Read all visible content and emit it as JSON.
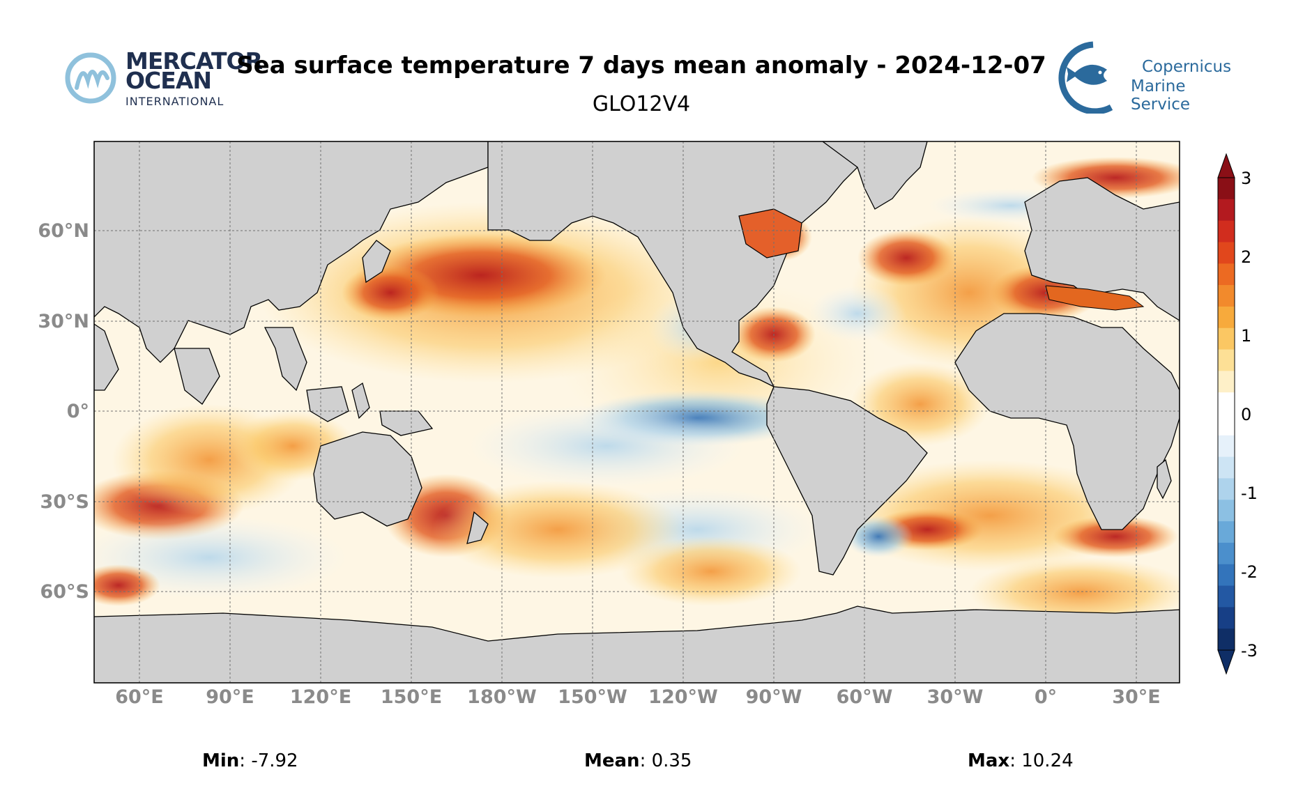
{
  "header": {
    "title": "Sea surface temperature 7 days mean anomaly - 2024-12-07",
    "subtitle": "GLO12V4"
  },
  "logos": {
    "left": {
      "line1": "MERCATOR",
      "line2": "OCEAN",
      "line3": "INTERNATIONAL",
      "color": "#1f2f4f",
      "accent": "#8fc1dc"
    },
    "right": {
      "line1": "Copernicus",
      "line2": "Marine Service",
      "icon": "fish-icon",
      "color": "#2b6a9c"
    }
  },
  "map": {
    "lat_ticks": [
      "60°N",
      "30°N",
      "0°",
      "30°S",
      "60°S"
    ],
    "lon_ticks": [
      "60°E",
      "90°E",
      "120°E",
      "150°E",
      "180°W",
      "150°W",
      "120°W",
      "90°W",
      "60°W",
      "30°W",
      "0°",
      "30°E"
    ],
    "land_color": "#d0d0d0",
    "ocean_base": "#ffffff"
  },
  "colorbar": {
    "ticks": [
      "3",
      "2",
      "1",
      "0",
      "-1",
      "-2",
      "-3"
    ],
    "range": [
      -3,
      3
    ],
    "colors": [
      "#8a0f16",
      "#b31a1f",
      "#d12d1e",
      "#e1471c",
      "#ec6a22",
      "#f28a2c",
      "#f7aa3c",
      "#fbc763",
      "#fde096",
      "#fef0c8",
      "#ffffff",
      "#ffffff",
      "#e6f1fa",
      "#cde4f4",
      "#aed3ec",
      "#8cc0e3",
      "#69a9d9",
      "#4b8fcc",
      "#3374bb",
      "#2358a3",
      "#173f86",
      "#0f2e66"
    ]
  },
  "stats": {
    "min_label": "Min",
    "min_value": ": -7.92",
    "mean_label": "Mean",
    "mean_value": ": 0.35",
    "max_label": "Max",
    "max_value": ": 10.24"
  }
}
